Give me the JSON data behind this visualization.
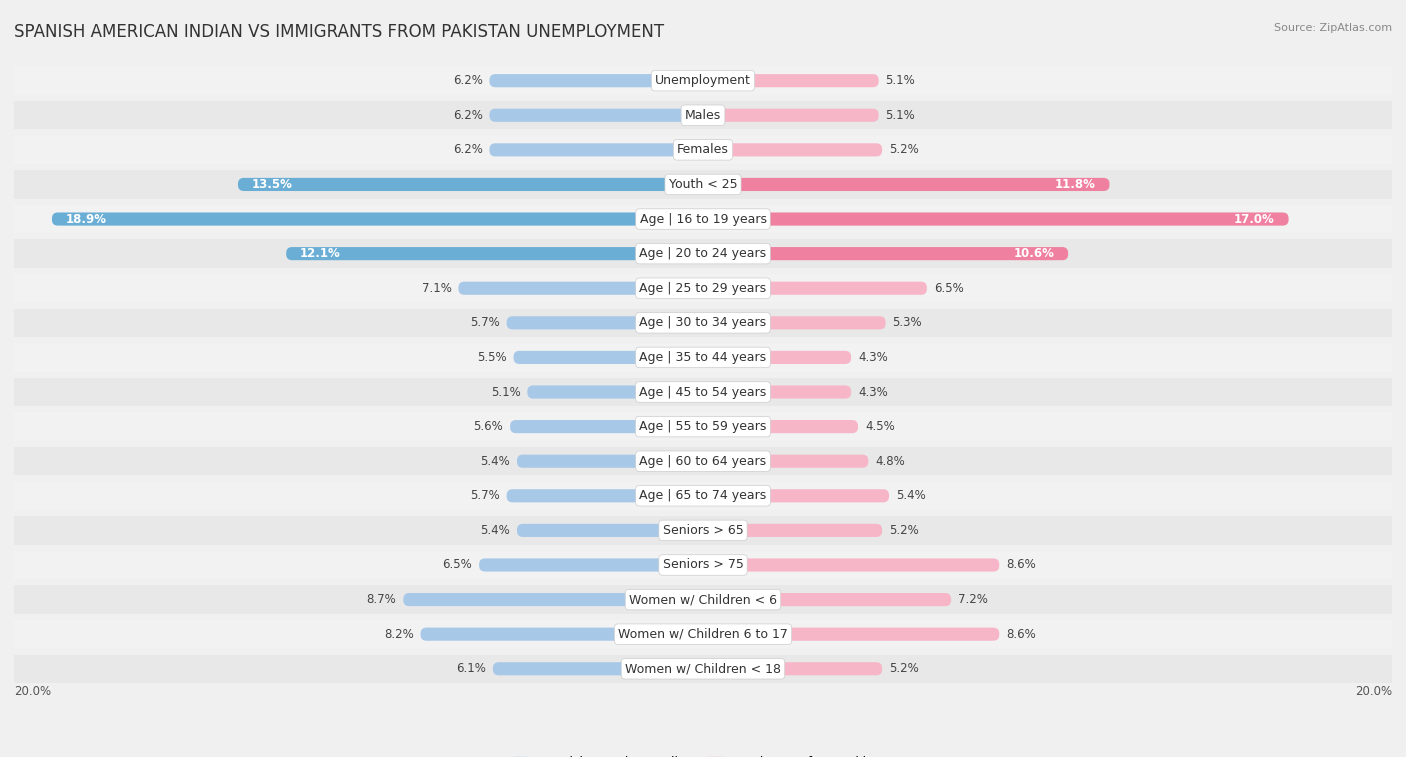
{
  "title": "SPANISH AMERICAN INDIAN VS IMMIGRANTS FROM PAKISTAN UNEMPLOYMENT",
  "source": "Source: ZipAtlas.com",
  "categories": [
    "Unemployment",
    "Males",
    "Females",
    "Youth < 25",
    "Age | 16 to 19 years",
    "Age | 20 to 24 years",
    "Age | 25 to 29 years",
    "Age | 30 to 34 years",
    "Age | 35 to 44 years",
    "Age | 45 to 54 years",
    "Age | 55 to 59 years",
    "Age | 60 to 64 years",
    "Age | 65 to 74 years",
    "Seniors > 65",
    "Seniors > 75",
    "Women w/ Children < 6",
    "Women w/ Children 6 to 17",
    "Women w/ Children < 18"
  ],
  "left_values": [
    6.2,
    6.2,
    6.2,
    13.5,
    18.9,
    12.1,
    7.1,
    5.7,
    5.5,
    5.1,
    5.6,
    5.4,
    5.7,
    5.4,
    6.5,
    8.7,
    8.2,
    6.1
  ],
  "right_values": [
    5.1,
    5.1,
    5.2,
    11.8,
    17.0,
    10.6,
    6.5,
    5.3,
    4.3,
    4.3,
    4.5,
    4.8,
    5.4,
    5.2,
    8.6,
    7.2,
    8.6,
    5.2
  ],
  "left_color_normal": "#a8c8e8",
  "left_color_highlight": "#6aaed6",
  "right_color_normal": "#f7b6c8",
  "right_color_highlight": "#f080a0",
  "left_label": "Spanish American Indian",
  "right_label": "Immigrants from Pakistan",
  "max_val": 20.0,
  "bg_color": "#f0f0f0",
  "row_color_light": "#f8f8f8",
  "row_color_dark": "#ebebeb",
  "title_fontsize": 12,
  "cat_fontsize": 9,
  "val_fontsize": 8.5,
  "legend_fontsize": 9,
  "highlight_rows": [
    3,
    4,
    5
  ],
  "stripe_colors": [
    "#f2f2f2",
    "#e8e8e8"
  ]
}
